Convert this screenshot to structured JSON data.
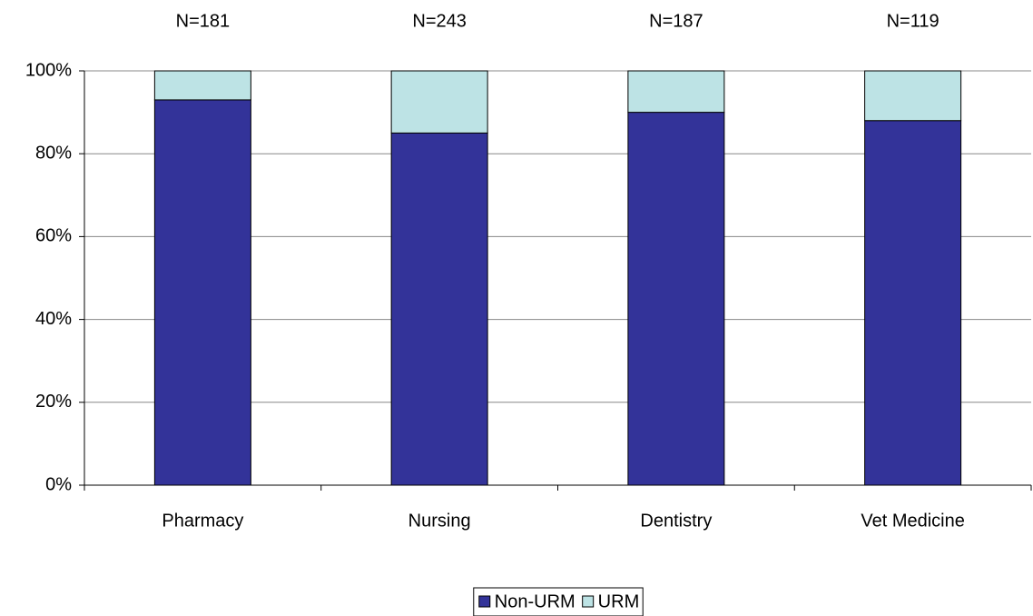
{
  "chart_data": {
    "type": "stacked-bar",
    "categories": [
      "Pharmacy",
      "Nursing",
      "Dentistry",
      "Vet Medicine"
    ],
    "annotations": [
      "N=181",
      "N=243",
      "N=187",
      "N=119"
    ],
    "series": [
      {
        "name": "Non-URM",
        "color": "#333399",
        "values": [
          93,
          85,
          90,
          88
        ]
      },
      {
        "name": "URM",
        "color": "#bde3e5",
        "values": [
          7,
          15,
          10,
          12
        ]
      }
    ],
    "ylim": [
      0,
      100
    ],
    "yticks": [
      {
        "value": 0,
        "label": "0%"
      },
      {
        "value": 20,
        "label": "20%"
      },
      {
        "value": 40,
        "label": "40%"
      },
      {
        "value": 60,
        "label": "60%"
      },
      {
        "value": 80,
        "label": "80%"
      },
      {
        "value": 100,
        "label": "100%"
      }
    ],
    "grid": true,
    "legend": "bottom"
  }
}
